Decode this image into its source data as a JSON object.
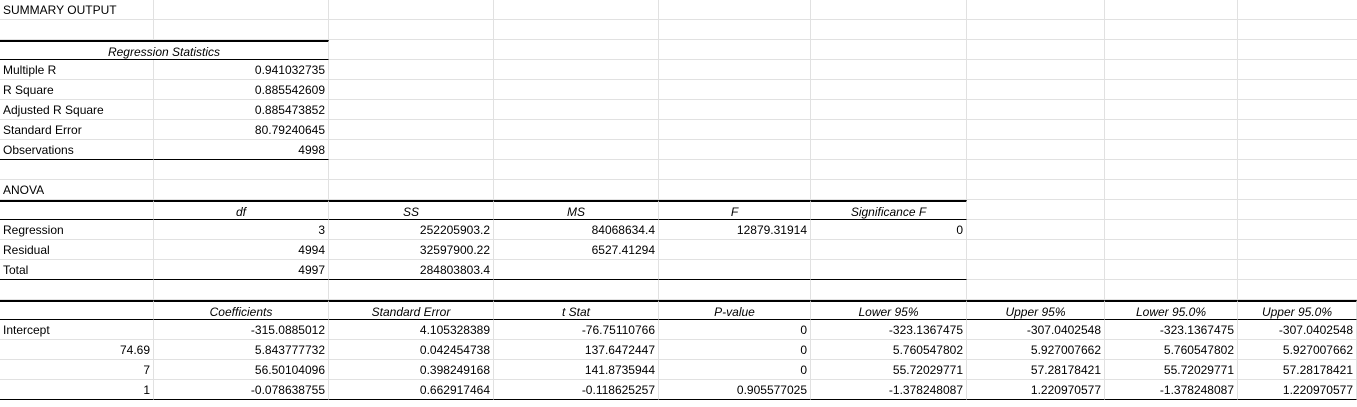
{
  "sheet": {
    "rows": [
      [
        {
          "v": "SUMMARY OUTPUT",
          "a": "l"
        }
      ],
      [],
      [
        {
          "v": "Regression Statistics",
          "a": "c",
          "f": "bt bb",
          "span": 2
        }
      ],
      [
        {
          "v": "Multiple R",
          "a": "l"
        },
        {
          "v": "0.941032735",
          "a": "n"
        }
      ],
      [
        {
          "v": "R Square",
          "a": "l"
        },
        {
          "v": "0.885542609",
          "a": "n"
        }
      ],
      [
        {
          "v": "Adjusted R Square",
          "a": "l"
        },
        {
          "v": "0.885473852",
          "a": "n"
        }
      ],
      [
        {
          "v": "Standard Error",
          "a": "l"
        },
        {
          "v": "80.79240645",
          "a": "n"
        }
      ],
      [
        {
          "v": "Observations",
          "a": "l",
          "f": "bb"
        },
        {
          "v": "4998",
          "a": "n",
          "f": "bb"
        }
      ],
      [],
      [
        {
          "v": "ANOVA",
          "a": "l"
        }
      ],
      [
        {
          "v": "",
          "f": "bt bb"
        },
        {
          "v": "df",
          "a": "c",
          "f": "bt bb"
        },
        {
          "v": "SS",
          "a": "c",
          "f": "bt bb"
        },
        {
          "v": "MS",
          "a": "c",
          "f": "bt bb"
        },
        {
          "v": "F",
          "a": "c",
          "f": "bt bb"
        },
        {
          "v": "Significance F",
          "a": "c",
          "f": "bt bb"
        }
      ],
      [
        {
          "v": "Regression",
          "a": "l"
        },
        {
          "v": "3",
          "a": "n"
        },
        {
          "v": "252205903.2",
          "a": "n"
        },
        {
          "v": "84068634.4",
          "a": "n"
        },
        {
          "v": "12879.31914",
          "a": "n"
        },
        {
          "v": "0",
          "a": "n"
        }
      ],
      [
        {
          "v": "Residual",
          "a": "l"
        },
        {
          "v": "4994",
          "a": "n"
        },
        {
          "v": "32597900.22",
          "a": "n"
        },
        {
          "v": "6527.41294",
          "a": "n"
        },
        {
          "v": "",
          "a": "n"
        },
        {
          "v": "",
          "a": "n"
        }
      ],
      [
        {
          "v": "Total",
          "a": "l",
          "f": "bb"
        },
        {
          "v": "4997",
          "a": "n",
          "f": "bb"
        },
        {
          "v": "284803803.4",
          "a": "n",
          "f": "bb"
        },
        {
          "v": "",
          "f": "bb"
        },
        {
          "v": "",
          "f": "bb"
        },
        {
          "v": "",
          "f": "bb"
        }
      ],
      [],
      [
        {
          "v": "",
          "f": "bt bb"
        },
        {
          "v": "Coefficients",
          "a": "c",
          "f": "bt bb"
        },
        {
          "v": "Standard Error",
          "a": "c",
          "f": "bt bb"
        },
        {
          "v": "t Stat",
          "a": "c",
          "f": "bt bb"
        },
        {
          "v": "P-value",
          "a": "c",
          "f": "bt bb"
        },
        {
          "v": "Lower 95%",
          "a": "c",
          "f": "bt bb"
        },
        {
          "v": "Upper 95%",
          "a": "c",
          "f": "bt bb"
        },
        {
          "v": "Lower 95.0%",
          "a": "c",
          "f": "bt bb"
        },
        {
          "v": "Upper 95.0%",
          "a": "c",
          "f": "bt bb"
        }
      ],
      [
        {
          "v": "Intercept",
          "a": "l"
        },
        {
          "v": "-315.0885012",
          "a": "n"
        },
        {
          "v": "4.105328389",
          "a": "n"
        },
        {
          "v": "-76.75110766",
          "a": "n"
        },
        {
          "v": "0",
          "a": "n"
        },
        {
          "v": "-323.1367475",
          "a": "n"
        },
        {
          "v": "-307.0402548",
          "a": "n"
        },
        {
          "v": "-323.1367475",
          "a": "n"
        },
        {
          "v": "-307.0402548",
          "a": "n"
        }
      ],
      [
        {
          "v": "74.69",
          "a": "n"
        },
        {
          "v": "5.843777732",
          "a": "n"
        },
        {
          "v": "0.042454738",
          "a": "n"
        },
        {
          "v": "137.6472447",
          "a": "n"
        },
        {
          "v": "0",
          "a": "n"
        },
        {
          "v": "5.760547802",
          "a": "n"
        },
        {
          "v": "5.927007662",
          "a": "n"
        },
        {
          "v": "5.760547802",
          "a": "n"
        },
        {
          "v": "5.927007662",
          "a": "n"
        }
      ],
      [
        {
          "v": "7",
          "a": "n"
        },
        {
          "v": "56.50104096",
          "a": "n"
        },
        {
          "v": "0.398249168",
          "a": "n"
        },
        {
          "v": "141.8735944",
          "a": "n"
        },
        {
          "v": "0",
          "a": "n"
        },
        {
          "v": "55.72029771",
          "a": "n"
        },
        {
          "v": "57.28178421",
          "a": "n"
        },
        {
          "v": "55.72029771",
          "a": "n"
        },
        {
          "v": "57.28178421",
          "a": "n"
        }
      ],
      [
        {
          "v": "1",
          "a": "n",
          "f": "bb"
        },
        {
          "v": "-0.078638755",
          "a": "n",
          "f": "bb"
        },
        {
          "v": "0.662917464",
          "a": "n",
          "f": "bb"
        },
        {
          "v": "-0.118625257",
          "a": "n",
          "f": "bb"
        },
        {
          "v": "0.905577025",
          "a": "n",
          "f": "bb"
        },
        {
          "v": "-1.378248087",
          "a": "n",
          "f": "bb"
        },
        {
          "v": "1.220970577",
          "a": "n",
          "f": "bb"
        },
        {
          "v": "-1.378248087",
          "a": "n",
          "f": "bb"
        },
        {
          "v": "1.220970577",
          "a": "n",
          "f": "bb"
        }
      ]
    ]
  }
}
